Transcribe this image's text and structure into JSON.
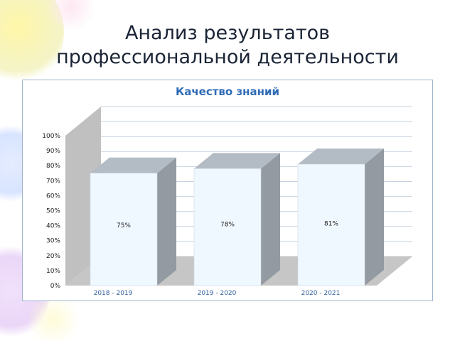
{
  "slide": {
    "title_line1": "Анализ результатов",
    "title_line2": "профессиональной деятельности"
  },
  "colors": {
    "title_text": "#1a2436",
    "chart_title": "#2e6bb5",
    "bar_front": "#f0f8ff",
    "bar_top": "#b3bcc4",
    "bar_side": "#939aa1",
    "back_wall": "#ffffff",
    "side_wall": "#c0c0c0",
    "floor": "#c6c6c6",
    "gridline": "#c8d2e0",
    "axis_text": "#222222",
    "category_text": "#2e5f9e"
  },
  "chart_data": {
    "type": "bar",
    "title": "Качество знаний",
    "categories": [
      "2018 - 2019",
      "2019 - 2020",
      "2020 - 2021"
    ],
    "values": [
      75,
      78,
      81
    ],
    "data_labels": [
      "75%",
      "78%",
      "81%"
    ],
    "ylim": [
      0,
      100
    ],
    "yticks": [
      "0%",
      "10%",
      "20%",
      "30%",
      "40%",
      "50%",
      "60%",
      "70%",
      "80%",
      "90%",
      "100%"
    ],
    "xlabel": "",
    "ylabel": "",
    "grid": true,
    "legend": "none"
  }
}
